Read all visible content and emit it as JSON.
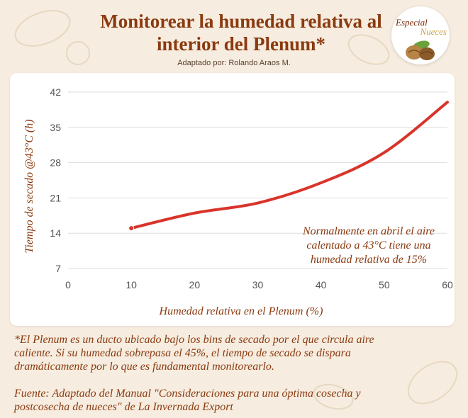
{
  "header": {
    "title_line1": "Monitorear la humedad relativa al",
    "title_line2": "interior del Plenum*",
    "subtitle": "Adaptado por: Rolando Araos M."
  },
  "badge": {
    "text1": "Especial",
    "text2": "Nueces",
    "icon": "walnut-icon"
  },
  "colors": {
    "line": "#d9342b",
    "text": "#8b3a10",
    "background": "#f6ecdf"
  },
  "chart_data": {
    "type": "line",
    "xlabel": "Humedad relativa en el Plenum (%)",
    "ylabel": "Tiempo de secado @43°C (h)",
    "xlim": [
      0,
      60
    ],
    "ylim": [
      7,
      42
    ],
    "xticks": [
      0,
      10,
      20,
      30,
      40,
      50,
      60
    ],
    "yticks": [
      7,
      14,
      21,
      28,
      35,
      42
    ],
    "grid": "horizontal",
    "series": [
      {
        "x": [
          10,
          20,
          30,
          40,
          50,
          60
        ],
        "y": [
          15,
          18,
          20,
          24,
          30,
          40
        ]
      }
    ],
    "annotation": {
      "lines": [
        "Normalmente en abril el aire",
        "calentado a 43°C tiene una",
        "humedad relativa de 15%"
      ]
    }
  },
  "footer": {
    "note_line1": "*El Plenum es un ducto ubicado bajo los bins de secado por el que circula aire",
    "note_line2": "caliente. Si su humedad sobrepasa el 45%, el tiempo de secado se dispara",
    "note_line3": "dramáticamente por lo que es fundamental monitorearlo.",
    "source_line1": "Fuente: Adaptado del Manual \"Consideraciones para una óptima cosecha y",
    "source_line2": "postcosecha de nueces\" de La Invernada Export"
  }
}
